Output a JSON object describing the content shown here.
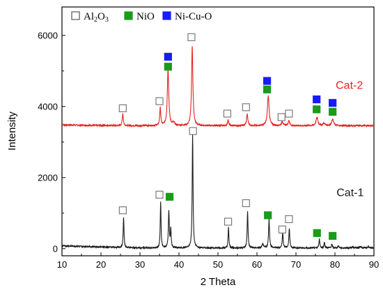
{
  "chart_data": {
    "type": "line",
    "xlabel": "2 Theta",
    "ylabel": "Intensity",
    "xlim": [
      10,
      90
    ],
    "ylim": [
      -200,
      6800
    ],
    "xticks": [
      10,
      20,
      30,
      40,
      50,
      60,
      70,
      80,
      90
    ],
    "yticks": [
      0,
      2000,
      4000,
      6000
    ],
    "grid": false,
    "legend": {
      "placement": "top",
      "entries": [
        {
          "key": "al2o3",
          "text": "Al",
          "sub": "2",
          "text2": "O",
          "sub2": "3",
          "marker": "open-square",
          "color": "#8c8c8c"
        },
        {
          "key": "nio",
          "text": "NiO",
          "marker": "filled-square",
          "color": "#1a9b1a"
        },
        {
          "key": "nicuo",
          "text": "Ni-Cu-O",
          "marker": "filled-square",
          "color": "#1a1aff"
        }
      ]
    },
    "series": [
      {
        "name": "Cat-2",
        "color": "#e52222",
        "baseline": 3460,
        "peaks": [
          {
            "x": 25.6,
            "h": 350,
            "w": 0.16
          },
          {
            "x": 35.2,
            "h": 500,
            "w": 0.16
          },
          {
            "x": 37.2,
            "h": 1600,
            "w": 0.22
          },
          {
            "x": 38.6,
            "h": 80,
            "w": 0.3
          },
          {
            "x": 43.4,
            "h": 2220,
            "w": 0.2
          },
          {
            "x": 52.6,
            "h": 160,
            "w": 0.18
          },
          {
            "x": 57.5,
            "h": 320,
            "w": 0.2
          },
          {
            "x": 62.9,
            "h": 840,
            "w": 0.26
          },
          {
            "x": 66.5,
            "h": 110,
            "w": 0.25
          },
          {
            "x": 68.2,
            "h": 150,
            "w": 0.22
          },
          {
            "x": 75.4,
            "h": 230,
            "w": 0.3
          },
          {
            "x": 77.2,
            "h": 60,
            "w": 0.3
          },
          {
            "x": 79.4,
            "h": 180,
            "w": 0.3
          }
        ]
      },
      {
        "name": "Cat-1",
        "color": "#1a1a1a",
        "baseline": 20,
        "peaks": [
          {
            "x": 25.8,
            "h": 860,
            "w": 0.12
          },
          {
            "x": 35.3,
            "h": 1300,
            "w": 0.12
          },
          {
            "x": 37.4,
            "h": 1050,
            "w": 0.14
          },
          {
            "x": 37.9,
            "h": 500,
            "w": 0.12
          },
          {
            "x": 43.5,
            "h": 3200,
            "w": 0.13
          },
          {
            "x": 52.7,
            "h": 580,
            "w": 0.12
          },
          {
            "x": 57.6,
            "h": 1030,
            "w": 0.13
          },
          {
            "x": 61.5,
            "h": 110,
            "w": 0.2
          },
          {
            "x": 63.1,
            "h": 800,
            "w": 0.15
          },
          {
            "x": 66.6,
            "h": 440,
            "w": 0.14
          },
          {
            "x": 68.3,
            "h": 550,
            "w": 0.14
          },
          {
            "x": 76.0,
            "h": 250,
            "w": 0.14
          },
          {
            "x": 77.3,
            "h": 150,
            "w": 0.14
          },
          {
            "x": 79.2,
            "h": 100,
            "w": 0.15
          },
          {
            "x": 80.9,
            "h": 50,
            "w": 0.2
          },
          {
            "x": 84.6,
            "h": 40,
            "w": 0.2
          },
          {
            "x": 86.6,
            "h": 40,
            "w": 0.2
          },
          {
            "x": 88.6,
            "h": 40,
            "w": 0.2
          }
        ]
      }
    ],
    "series_labels": [
      {
        "text": "Cat-2",
        "color": "#e52222",
        "x": 80.2,
        "y": 4500
      },
      {
        "text": "Cat-1",
        "color": "#1a1a1a",
        "x": 80.4,
        "y": 1480
      }
    ],
    "markers": [
      {
        "type": "al2o3",
        "x": 25.6,
        "y": 3950
      },
      {
        "type": "al2o3",
        "x": 35.0,
        "y": 4150
      },
      {
        "type": "nicuo",
        "x": 37.2,
        "y": 5400
      },
      {
        "type": "nio",
        "x": 37.2,
        "y": 5120
      },
      {
        "type": "al2o3",
        "x": 43.2,
        "y": 5950
      },
      {
        "type": "al2o3",
        "x": 52.4,
        "y": 3800
      },
      {
        "type": "al2o3",
        "x": 57.2,
        "y": 3980
      },
      {
        "type": "nicuo",
        "x": 62.6,
        "y": 4720
      },
      {
        "type": "nio",
        "x": 62.6,
        "y": 4480
      },
      {
        "type": "al2o3",
        "x": 66.3,
        "y": 3700
      },
      {
        "type": "al2o3",
        "x": 68.2,
        "y": 3800
      },
      {
        "type": "nicuo",
        "x": 75.3,
        "y": 4200
      },
      {
        "type": "nio",
        "x": 75.3,
        "y": 3920
      },
      {
        "type": "nicuo",
        "x": 79.4,
        "y": 4100
      },
      {
        "type": "nio",
        "x": 79.4,
        "y": 3850
      },
      {
        "type": "al2o3",
        "x": 25.6,
        "y": 1080
      },
      {
        "type": "al2o3",
        "x": 35.0,
        "y": 1520
      },
      {
        "type": "nio",
        "x": 37.6,
        "y": 1460
      },
      {
        "type": "al2o3",
        "x": 43.6,
        "y": 3310
      },
      {
        "type": "al2o3",
        "x": 52.6,
        "y": 760
      },
      {
        "type": "al2o3",
        "x": 57.2,
        "y": 1280
      },
      {
        "type": "nio",
        "x": 62.8,
        "y": 940
      },
      {
        "type": "al2o3",
        "x": 66.5,
        "y": 540
      },
      {
        "type": "al2o3",
        "x": 68.2,
        "y": 830
      },
      {
        "type": "nio",
        "x": 75.4,
        "y": 440
      },
      {
        "type": "nio",
        "x": 79.4,
        "y": 360
      }
    ]
  }
}
